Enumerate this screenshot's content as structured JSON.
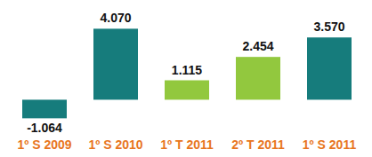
{
  "chart_data": {
    "type": "bar",
    "categories": [
      "1º S 2009",
      "1º S 2010",
      "1º T 2011",
      "2º T 2011",
      "1º S 2011"
    ],
    "values": [
      -1064,
      4070,
      1115,
      2454,
      3570
    ],
    "value_labels": [
      "-1.064",
      "4.070",
      "1.115",
      "2.454",
      "3.570"
    ],
    "colors": [
      "#167c7c",
      "#167c7c",
      "#92c83e",
      "#92c83e",
      "#167c7c"
    ],
    "ylim": [
      -1300,
      4700
    ],
    "data_labels": true,
    "tick_labels": "x",
    "grid": false
  }
}
